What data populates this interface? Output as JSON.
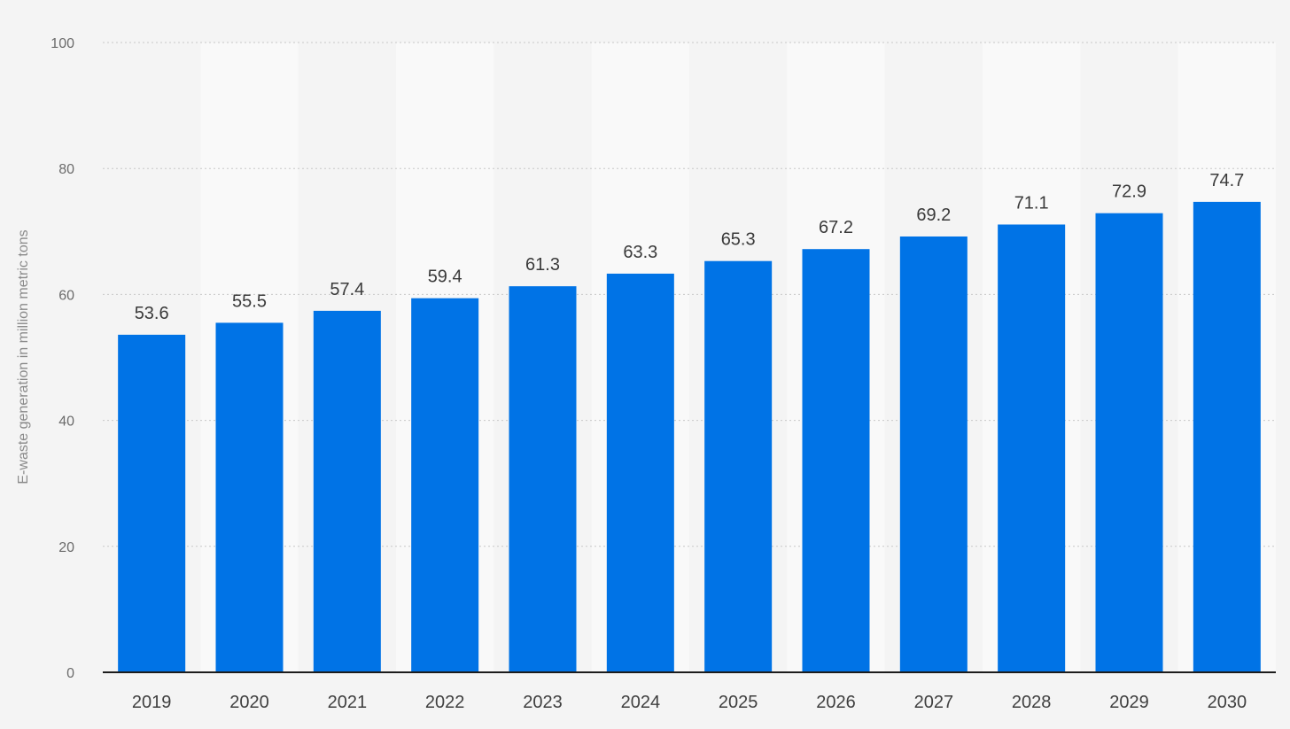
{
  "chart_data": {
    "type": "bar",
    "categories": [
      "2019",
      "2020",
      "2021",
      "2022",
      "2023",
      "2024",
      "2025",
      "2026",
      "2027",
      "2028",
      "2029",
      "2030"
    ],
    "series": [
      {
        "values": [
          53.6,
          55.5,
          57.4,
          59.4,
          61.3,
          63.3,
          65.3,
          67.2,
          69.2,
          71.1,
          72.9,
          74.7
        ]
      }
    ],
    "value_labels": [
      "53.6",
      "55.5",
      "57.4",
      "59.4",
      "61.3",
      "63.3",
      "65.3",
      "67.2",
      "69.2",
      "71.1",
      "72.9",
      "74.7"
    ],
    "title": "",
    "xlabel": "",
    "ylabel": "E-waste generation in million metric tons",
    "ylim": [
      0,
      100
    ],
    "yticks": [
      "0",
      "20",
      "40",
      "60",
      "80",
      "100"
    ],
    "grid": true,
    "legend": "none",
    "colors": {
      "bar": "#0073e6",
      "background": "#f4f4f4",
      "band_alt": "#f9f9f9"
    }
  }
}
